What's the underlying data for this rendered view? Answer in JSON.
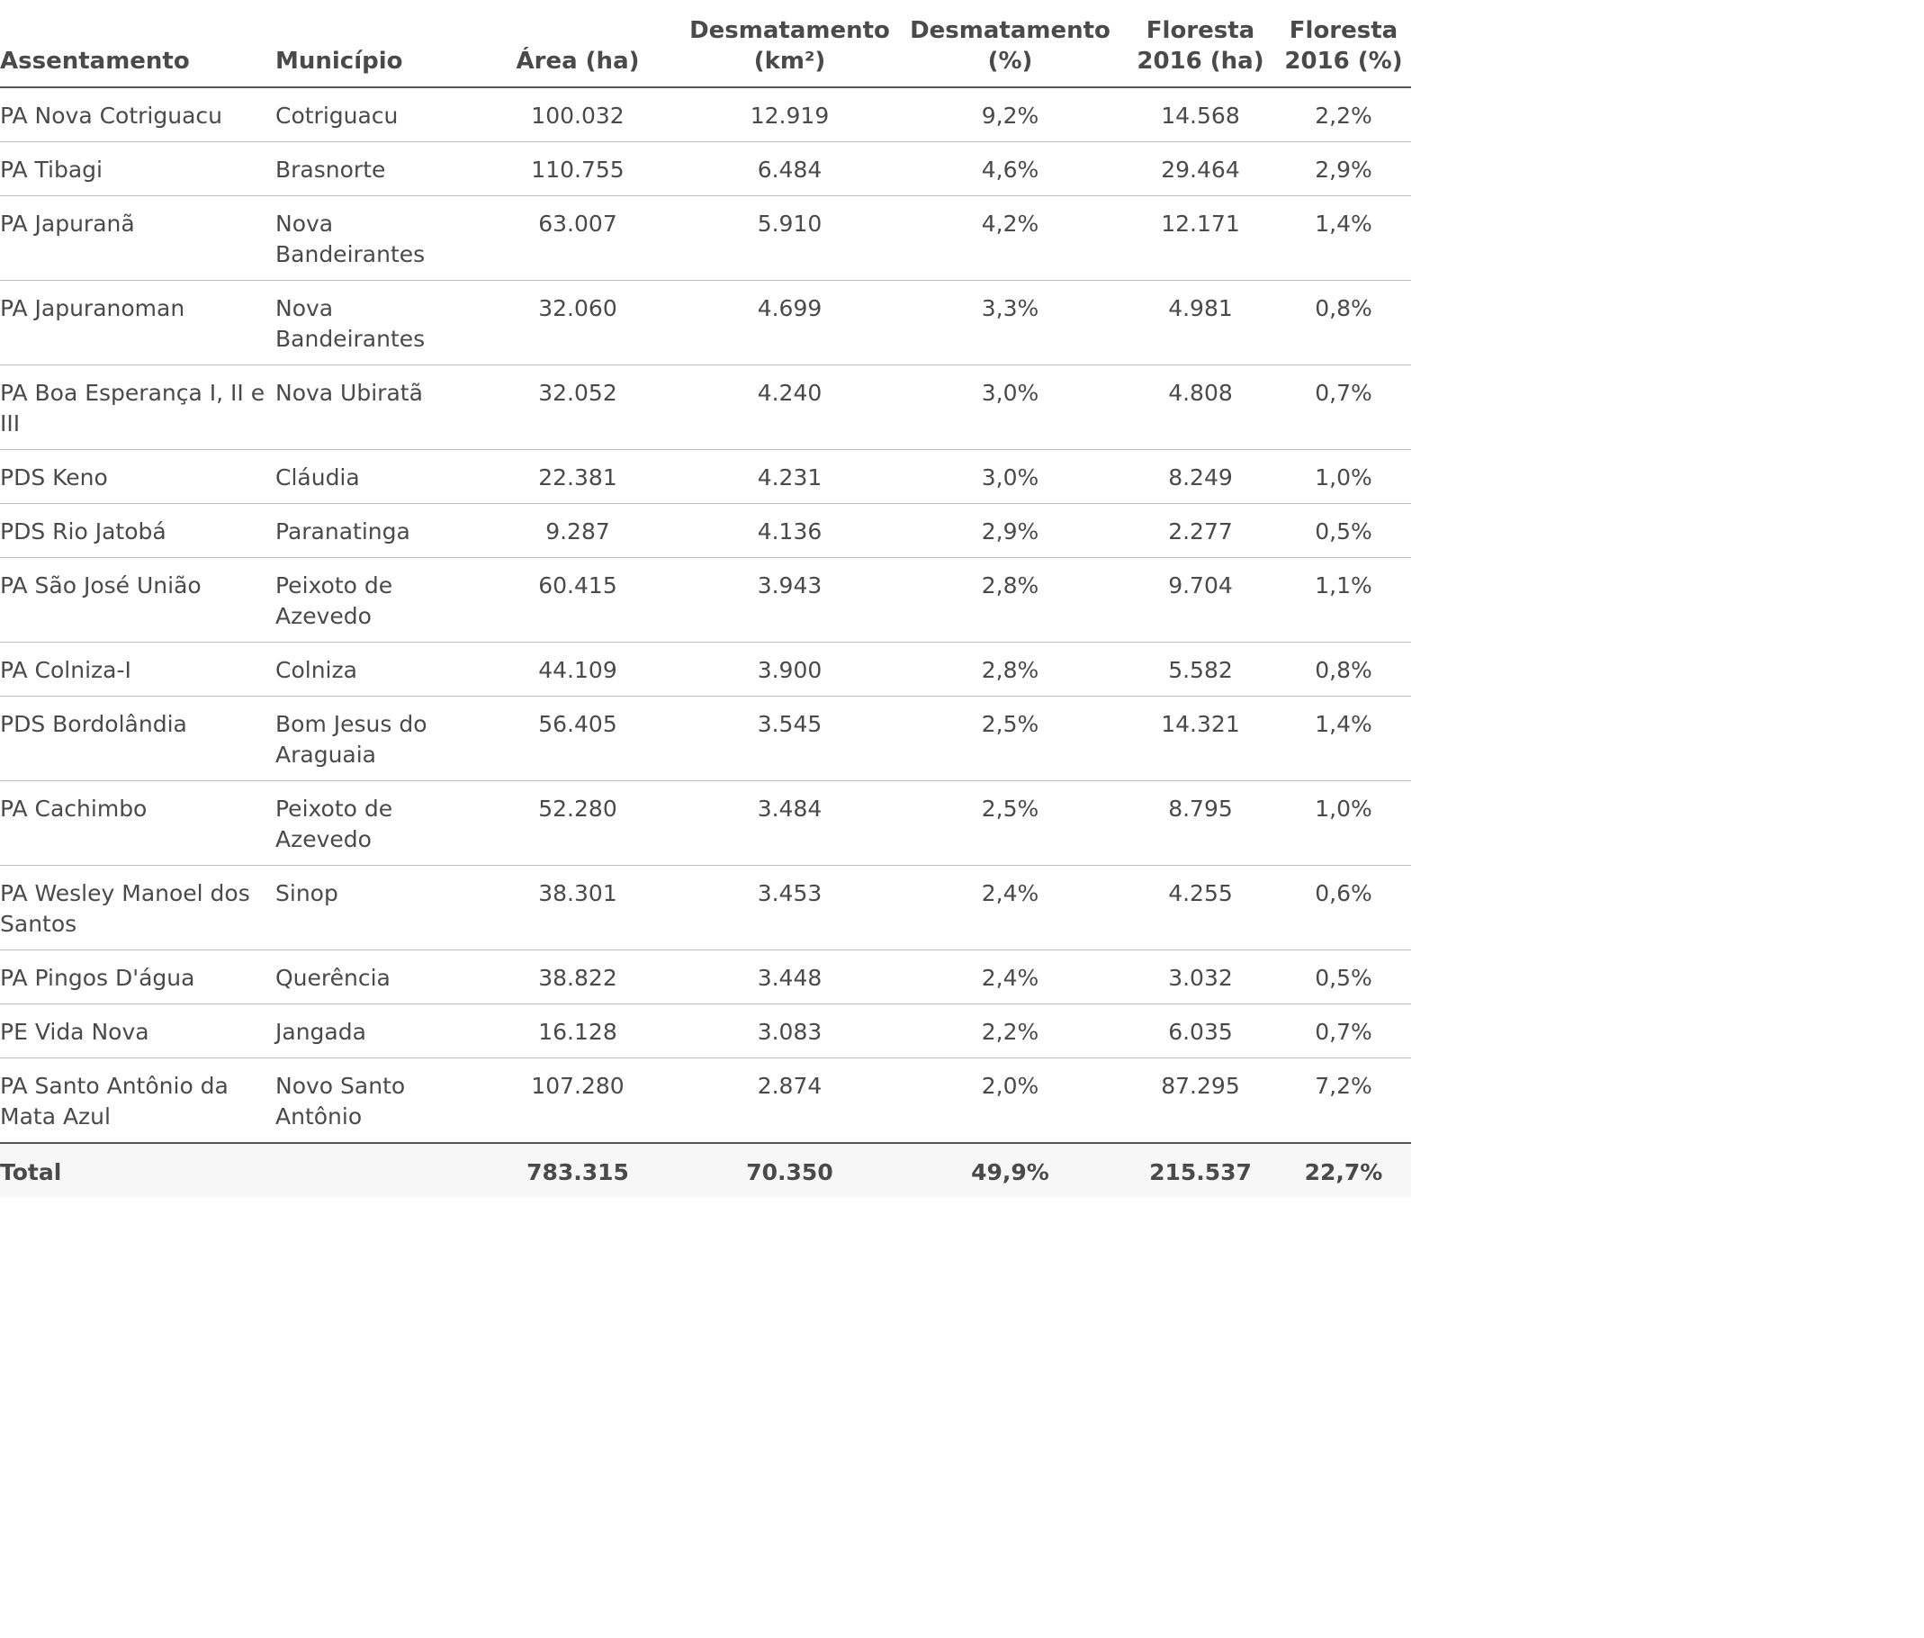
{
  "table": {
    "headers": {
      "assentamento": "Assentamento",
      "municipio": "Município",
      "area": "Área (ha)",
      "desmatamento_km2": "Desmatamento\n(km²)",
      "desmatamento_pct": "Desmatamento\n(%)",
      "floresta_ha": "Floresta\n2016 (ha)",
      "floresta_pct": "Floresta\n2016 (%)"
    },
    "rows": [
      {
        "assentamento": "PA Nova Cotriguacu",
        "municipio": "Cotriguacu",
        "area": "100.032",
        "desmatamento_km2": "12.919",
        "desmatamento_pct": "9,2%",
        "floresta_ha": "14.568",
        "floresta_pct": "2,2%"
      },
      {
        "assentamento": "PA Tibagi",
        "municipio": "Brasnorte",
        "area": "110.755",
        "desmatamento_km2": "6.484",
        "desmatamento_pct": "4,6%",
        "floresta_ha": "29.464",
        "floresta_pct": "2,9%"
      },
      {
        "assentamento": "PA Japuranã",
        "municipio": "Nova Bandeirantes",
        "area": "63.007",
        "desmatamento_km2": "5.910",
        "desmatamento_pct": "4,2%",
        "floresta_ha": "12.171",
        "floresta_pct": "1,4%"
      },
      {
        "assentamento": "PA Japuranoman",
        "municipio": "Nova Bandeirantes",
        "area": "32.060",
        "desmatamento_km2": "4.699",
        "desmatamento_pct": "3,3%",
        "floresta_ha": "4.981",
        "floresta_pct": "0,8%"
      },
      {
        "assentamento": "PA Boa Esperança I, II e III",
        "municipio": "Nova Ubiratã",
        "area": "32.052",
        "desmatamento_km2": "4.240",
        "desmatamento_pct": "3,0%",
        "floresta_ha": "4.808",
        "floresta_pct": "0,7%"
      },
      {
        "assentamento": "PDS Keno",
        "municipio": "Cláudia",
        "area": "22.381",
        "desmatamento_km2": "4.231",
        "desmatamento_pct": "3,0%",
        "floresta_ha": "8.249",
        "floresta_pct": "1,0%"
      },
      {
        "assentamento": "PDS Rio Jatobá",
        "municipio": "Paranatinga",
        "area": "9.287",
        "desmatamento_km2": "4.136",
        "desmatamento_pct": "2,9%",
        "floresta_ha": "2.277",
        "floresta_pct": "0,5%"
      },
      {
        "assentamento": "PA São José União",
        "municipio": "Peixoto de Azevedo",
        "area": "60.415",
        "desmatamento_km2": "3.943",
        "desmatamento_pct": "2,8%",
        "floresta_ha": "9.704",
        "floresta_pct": "1,1%"
      },
      {
        "assentamento": "PA Colniza-I",
        "municipio": " Colniza",
        "area": "44.109",
        "desmatamento_km2": "3.900",
        "desmatamento_pct": "2,8%",
        "floresta_ha": "5.582",
        "floresta_pct": "0,8%"
      },
      {
        "assentamento": "PDS Bordolândia",
        "municipio": "Bom Jesus do Araguaia",
        "area": "56.405",
        "desmatamento_km2": "3.545",
        "desmatamento_pct": "2,5%",
        "floresta_ha": "14.321",
        "floresta_pct": "1,4%"
      },
      {
        "assentamento": "PA Cachimbo",
        "municipio": "Peixoto de Azevedo",
        "area": "52.280",
        "desmatamento_km2": "3.484",
        "desmatamento_pct": "2,5%",
        "floresta_ha": "8.795",
        "floresta_pct": "1,0%"
      },
      {
        "assentamento": "PA Wesley Manoel dos Santos",
        "municipio": "Sinop",
        "area": "38.301",
        "desmatamento_km2": "3.453",
        "desmatamento_pct": "2,4%",
        "floresta_ha": "4.255",
        "floresta_pct": "0,6%"
      },
      {
        "assentamento": "PA Pingos D'água",
        "municipio": "Querência",
        "area": "38.822",
        "desmatamento_km2": "3.448",
        "desmatamento_pct": "2,4%",
        "floresta_ha": "3.032",
        "floresta_pct": "0,5%"
      },
      {
        "assentamento": "PE Vida Nova",
        "municipio": "Jangada",
        "area": "16.128",
        "desmatamento_km2": "3.083",
        "desmatamento_pct": "2,2%",
        "floresta_ha": "6.035",
        "floresta_pct": "0,7%"
      },
      {
        "assentamento": "PA Santo Antônio da Mata Azul",
        "municipio": "Novo Santo Antônio",
        "area": "107.280",
        "desmatamento_km2": "2.874",
        "desmatamento_pct": "2,0%",
        "floresta_ha": "87.295",
        "floresta_pct": "7,2%"
      }
    ],
    "total": {
      "label": "Total",
      "area": "783.315",
      "desmatamento_km2": "70.350",
      "desmatamento_pct": "49,9%",
      "floresta_ha": "215.537",
      "floresta_pct": "22,7%"
    }
  }
}
